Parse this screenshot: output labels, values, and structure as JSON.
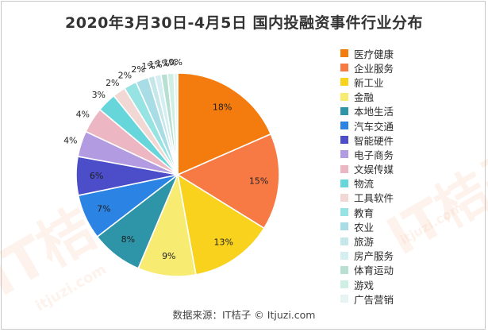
{
  "chart_data": {
    "type": "pie",
    "title": "2020年3月30日-4月5日 国内投融资事件行业分布",
    "source": "数据来源：IT桔子 © Itjuzi.com",
    "watermark": {
      "logo": "IT桔子",
      "url": "itjuzi.com"
    },
    "legend_position": "right",
    "slices": [
      {
        "name": "医疗健康",
        "value": 18,
        "label": "18%",
        "color": "#F47B0E"
      },
      {
        "name": "企业服务",
        "value": 15,
        "label": "15%",
        "color": "#F77A45"
      },
      {
        "name": "新工业",
        "value": 13,
        "label": "13%",
        "color": "#F8D21C"
      },
      {
        "name": "金融",
        "value": 9,
        "label": "9%",
        "color": "#F7EB72"
      },
      {
        "name": "本地生活",
        "value": 8,
        "label": "8%",
        "color": "#2E95A8"
      },
      {
        "name": "汽车交通",
        "value": 7,
        "label": "7%",
        "color": "#2B84E4"
      },
      {
        "name": "智能硬件",
        "value": 6,
        "label": "6%",
        "color": "#4B4DC9"
      },
      {
        "name": "电子商务",
        "value": 4,
        "label": "4%",
        "color": "#B39BE2"
      },
      {
        "name": "文娱传媒",
        "value": 4,
        "label": "4%",
        "color": "#ECB6C3"
      },
      {
        "name": "物流",
        "value": 3,
        "label": "3%",
        "color": "#66D6DA"
      },
      {
        "name": "工具软件",
        "value": 2,
        "label": "2%",
        "color": "#F1D8D5"
      },
      {
        "name": "教育",
        "value": 2,
        "label": "2%",
        "color": "#97E3E3"
      },
      {
        "name": "农业",
        "value": 2,
        "label": "2%",
        "color": "#A9DDE6"
      },
      {
        "name": "旅游",
        "value": 1,
        "label": "1%",
        "color": "#C6E7EA"
      },
      {
        "name": "房产服务",
        "value": 1,
        "label": "1%",
        "color": "#D4EEF1"
      },
      {
        "name": "体育运动",
        "value": 1,
        "label": "1%",
        "color": "#B8E0D2"
      },
      {
        "name": "游戏",
        "value": 1,
        "label": "1%",
        "color": "#CFEFE5"
      },
      {
        "name": "广告营销",
        "value": 0,
        "label": "0%",
        "color": "#E5F4F2"
      }
    ]
  }
}
